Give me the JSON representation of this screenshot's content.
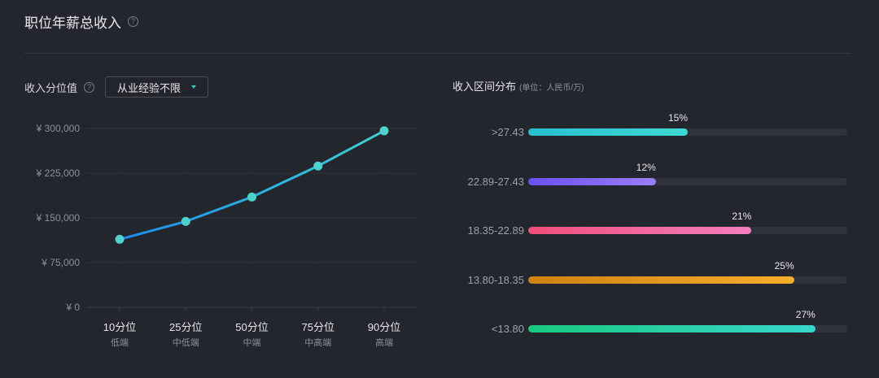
{
  "page": {
    "title": "职位年薪总收入",
    "help_glyph": "?"
  },
  "percentile": {
    "label": "收入分位值",
    "filter_value": "从业经验不限"
  },
  "distribution": {
    "title": "收入区间分布",
    "unit": "(单位：人民币/万)"
  },
  "chart_data": [
    {
      "type": "line",
      "x": [
        "10分位",
        "25分位",
        "50分位",
        "75分位",
        "90分位"
      ],
      "x_sublabels": [
        "低端",
        "中低端",
        "中端",
        "中高端",
        "高端"
      ],
      "values": [
        114000,
        144000,
        185000,
        237000,
        296000
      ],
      "ylim": [
        0,
        300000
      ],
      "yticks": [
        0,
        75000,
        150000,
        225000,
        300000
      ],
      "ytick_labels": [
        "¥ 0",
        "¥ 75,000",
        "¥ 150,000",
        "¥ 225,000",
        "¥ 300,000"
      ],
      "grid": true,
      "colors": {
        "start": "#1a8cf0",
        "end": "#3ecfd0",
        "marker": "#4fd2cc"
      }
    },
    {
      "type": "bar",
      "orientation": "horizontal",
      "categories": [
        ">27.43",
        "22.89-27.43",
        "18.35-22.89",
        "13.80-18.35",
        "<13.80"
      ],
      "values": [
        15,
        12,
        21,
        25,
        27
      ],
      "value_labels": [
        "15%",
        "12%",
        "21%",
        "25%",
        "27%"
      ],
      "max": 30,
      "colors": [
        [
          "#26bfcf",
          "#3fd9d5"
        ],
        [
          "#6a4ff3",
          "#9a7ef7"
        ],
        [
          "#ef4f7a",
          "#f47fbf"
        ],
        [
          "#cf8210",
          "#f6ae2d"
        ],
        [
          "#19c97f",
          "#38d6cc"
        ]
      ]
    }
  ]
}
